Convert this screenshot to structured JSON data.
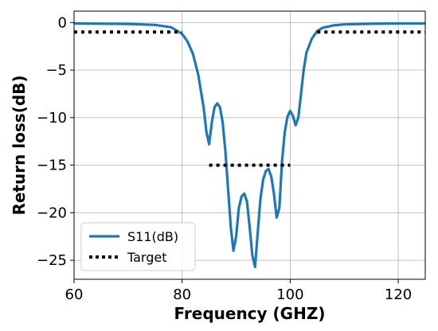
{
  "chart_data": {
    "type": "line",
    "xlabel": "Frequency (GHZ)",
    "ylabel": "Return loss(dB)",
    "xlim": [
      60,
      125
    ],
    "ylim": [
      -27,
      1.2
    ],
    "x_ticks": [
      60,
      80,
      100,
      120
    ],
    "y_ticks": [
      0,
      -5,
      -10,
      -15,
      -20,
      -25
    ],
    "y_tick_labels": [
      "0",
      "−5",
      "−10",
      "−15",
      "−20",
      "−25"
    ],
    "grid": true,
    "legend_position": "lower-left",
    "series": [
      {
        "name": "S11(dB)",
        "style": "solid",
        "color": "#1f77b4",
        "x": [
          60,
          65,
          70,
          75,
          78,
          80,
          81,
          82,
          83,
          84,
          84.5,
          85,
          85.5,
          86,
          86.5,
          87,
          87.5,
          88,
          88.5,
          89,
          89.5,
          90,
          90.5,
          91,
          91.5,
          92,
          92.5,
          93,
          93.5,
          94,
          94.5,
          95,
          95.5,
          96,
          96.5,
          97,
          97.5,
          98,
          98.5,
          99,
          99.5,
          100,
          100.5,
          101,
          101.5,
          102,
          102.5,
          103,
          104,
          105,
          106,
          108,
          110,
          115,
          120,
          125
        ],
        "y": [
          -0.1,
          -0.12,
          -0.15,
          -0.25,
          -0.5,
          -1.2,
          -2.0,
          -3.3,
          -5.5,
          -9.0,
          -11.5,
          -12.8,
          -10.5,
          -8.9,
          -8.5,
          -8.9,
          -10.5,
          -13.5,
          -17.5,
          -21.5,
          -24.0,
          -22.5,
          -19.5,
          -18.3,
          -18.0,
          -18.8,
          -21.5,
          -24.5,
          -25.7,
          -22.0,
          -18.5,
          -16.5,
          -15.6,
          -15.4,
          -16.2,
          -18.0,
          -20.5,
          -19.5,
          -14.5,
          -11.5,
          -9.9,
          -9.3,
          -9.8,
          -10.8,
          -10.0,
          -7.5,
          -5.0,
          -3.2,
          -1.7,
          -0.9,
          -0.55,
          -0.3,
          -0.2,
          -0.13,
          -0.1,
          -0.1
        ]
      },
      {
        "name": "Target",
        "style": "dotted",
        "color": "#000000",
        "segments": [
          {
            "x": [
              60,
              80
            ],
            "y": [
              -1,
              -1
            ]
          },
          {
            "x": [
              85,
              100
            ],
            "y": [
              -15,
              -15
            ]
          },
          {
            "x": [
              105,
              125
            ],
            "y": [
              -1,
              -1
            ]
          }
        ]
      }
    ]
  }
}
